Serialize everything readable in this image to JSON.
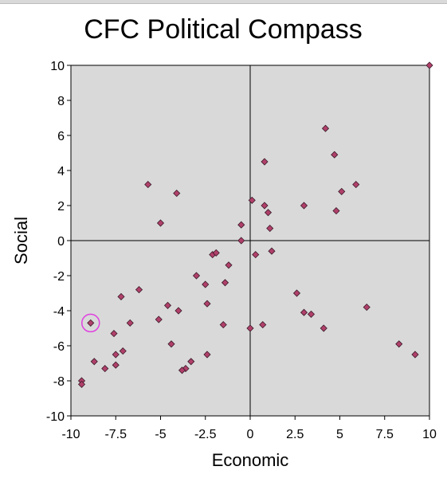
{
  "chart_data": {
    "type": "scatter",
    "title": "CFC Political Compass",
    "xlabel": "Economic",
    "ylabel": "Social",
    "xlim": [
      -10,
      10
    ],
    "ylim": [
      -10,
      10
    ],
    "x_ticks": [
      "-10",
      "-7.5",
      "-5",
      "-2.5",
      "0",
      "2.5",
      "5",
      "7.5",
      "10"
    ],
    "y_ticks": [
      "10",
      "8",
      "6",
      "4",
      "2",
      "0",
      "-2",
      "-4",
      "-6",
      "-8",
      "-10"
    ],
    "background_color": "#d9d9d9",
    "marker_color": "#b0406a",
    "highlight_color": "#e040e0",
    "grid": false,
    "points": [
      {
        "x": 10.0,
        "y": 10.0
      },
      {
        "x": 4.2,
        "y": 6.4
      },
      {
        "x": 4.7,
        "y": 4.9
      },
      {
        "x": 0.8,
        "y": 4.5
      },
      {
        "x": 5.9,
        "y": 3.2
      },
      {
        "x": 5.1,
        "y": 2.8
      },
      {
        "x": -5.7,
        "y": 3.2
      },
      {
        "x": -4.1,
        "y": 2.7
      },
      {
        "x": 0.1,
        "y": 2.3
      },
      {
        "x": 0.8,
        "y": 2.0
      },
      {
        "x": 3.0,
        "y": 2.0
      },
      {
        "x": 1.0,
        "y": 1.6
      },
      {
        "x": 4.8,
        "y": 1.7
      },
      {
        "x": -5.0,
        "y": 1.0
      },
      {
        "x": -0.5,
        "y": 0.9
      },
      {
        "x": 1.1,
        "y": 0.7
      },
      {
        "x": -0.5,
        "y": 0.0
      },
      {
        "x": 1.2,
        "y": -0.6
      },
      {
        "x": 0.3,
        "y": -0.8
      },
      {
        "x": -2.1,
        "y": -0.8
      },
      {
        "x": -1.9,
        "y": -0.7
      },
      {
        "x": -1.2,
        "y": -1.4
      },
      {
        "x": -3.0,
        "y": -2.0
      },
      {
        "x": -2.5,
        "y": -2.5
      },
      {
        "x": -1.4,
        "y": -2.4
      },
      {
        "x": -6.2,
        "y": -2.8
      },
      {
        "x": -7.2,
        "y": -3.2
      },
      {
        "x": 2.6,
        "y": -3.0
      },
      {
        "x": -4.6,
        "y": -3.7
      },
      {
        "x": -2.4,
        "y": -3.6
      },
      {
        "x": 6.5,
        "y": -3.8
      },
      {
        "x": -4.0,
        "y": -4.0
      },
      {
        "x": 3.0,
        "y": -4.1
      },
      {
        "x": 3.4,
        "y": -4.2
      },
      {
        "x": -8.9,
        "y": -4.7
      },
      {
        "x": -5.1,
        "y": -4.5
      },
      {
        "x": -6.7,
        "y": -4.7
      },
      {
        "x": -1.5,
        "y": -4.8
      },
      {
        "x": 0.7,
        "y": -4.8
      },
      {
        "x": 4.1,
        "y": -5.0
      },
      {
        "x": 0.0,
        "y": -5.0
      },
      {
        "x": -7.6,
        "y": -5.3
      },
      {
        "x": -4.4,
        "y": -5.9
      },
      {
        "x": 8.3,
        "y": -5.9
      },
      {
        "x": -7.1,
        "y": -6.3
      },
      {
        "x": -7.5,
        "y": -6.5
      },
      {
        "x": -2.4,
        "y": -6.5
      },
      {
        "x": 9.2,
        "y": -6.5
      },
      {
        "x": -8.7,
        "y": -6.9
      },
      {
        "x": -3.3,
        "y": -6.9
      },
      {
        "x": -7.5,
        "y": -7.1
      },
      {
        "x": -8.1,
        "y": -7.3
      },
      {
        "x": -3.6,
        "y": -7.3
      },
      {
        "x": -3.8,
        "y": -7.4
      },
      {
        "x": -9.4,
        "y": -8.0
      },
      {
        "x": -9.4,
        "y": -8.2
      }
    ],
    "highlighted_point": {
      "x": -8.9,
      "y": -4.7
    }
  }
}
